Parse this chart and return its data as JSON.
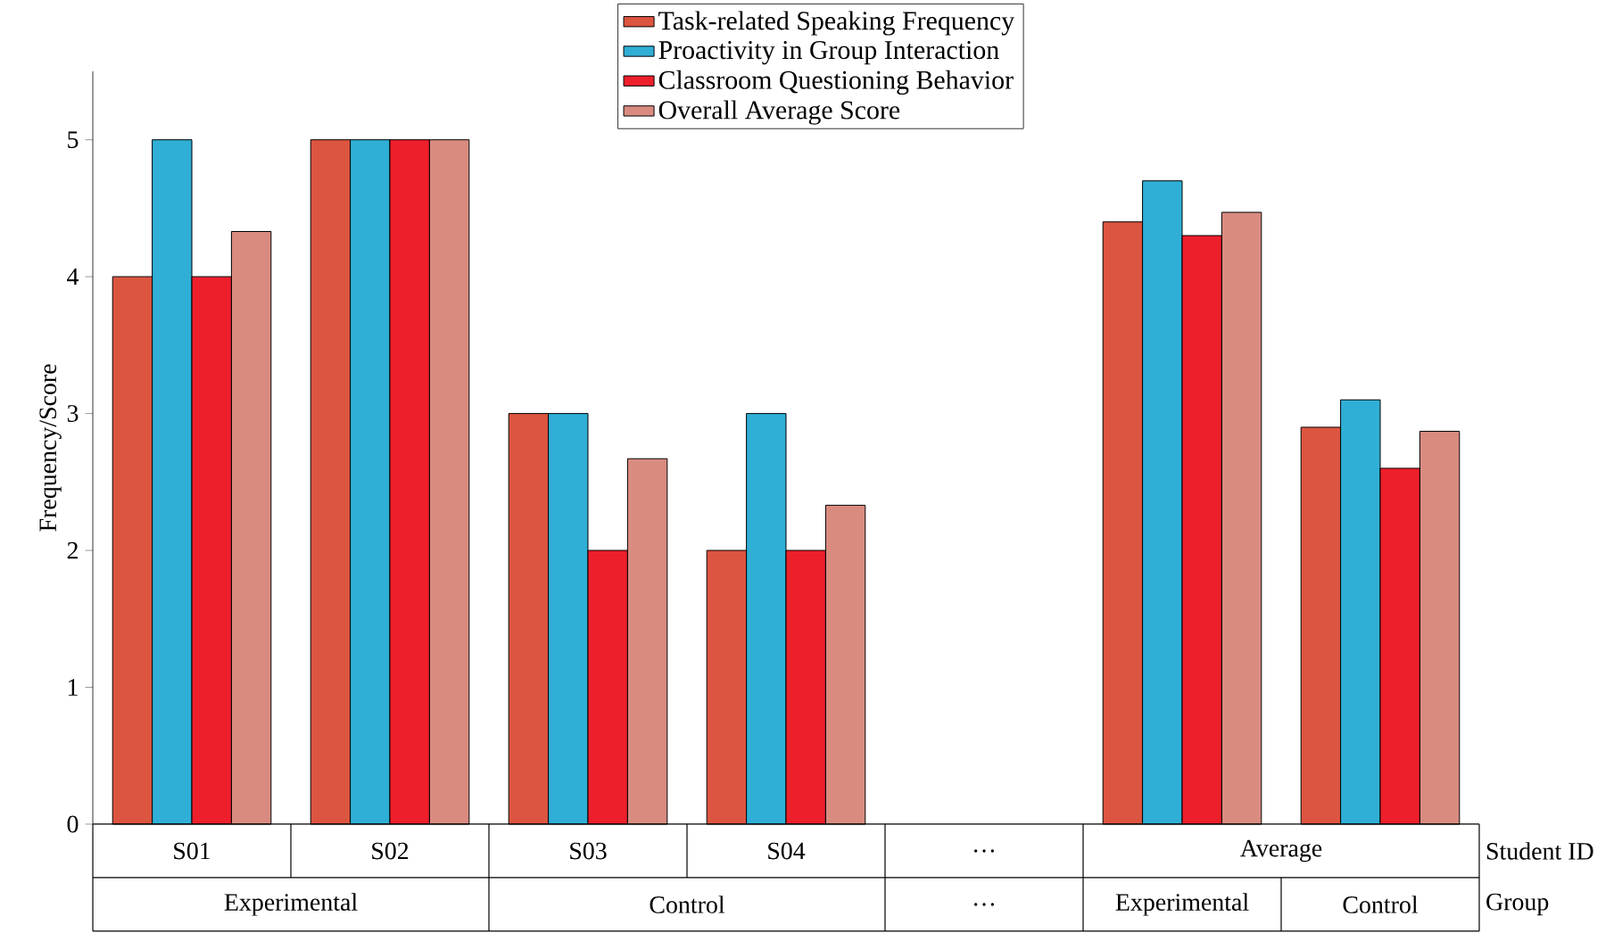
{
  "chart_data": {
    "type": "bar",
    "ylabel": "Frequency/Score",
    "categories": [
      "S01",
      "S02",
      "S03",
      "S04",
      "…",
      null,
      null
    ],
    "series": [
      {
        "name": "Task-related Speaking Frequency",
        "color": "#dc5540",
        "values": [
          4,
          5,
          3,
          2,
          null,
          4.4,
          2.9
        ]
      },
      {
        "name": "Proactivity in Group Interaction",
        "color": "#30afd6",
        "values": [
          5,
          5,
          3,
          3,
          null,
          4.7,
          3.1
        ]
      },
      {
        "name": "Classroom Questioning Behavior",
        "color": "#ed1f2b",
        "values": [
          4,
          5,
          2,
          2,
          null,
          4.3,
          2.6
        ]
      },
      {
        "name": "Overall Average Score",
        "color": "#d98b80",
        "values": [
          4.33,
          5,
          2.67,
          2.33,
          null,
          4.47,
          2.87
        ]
      }
    ],
    "ylim": [
      0,
      5.5
    ],
    "yticks": [
      0,
      1,
      2,
      3,
      4,
      5
    ],
    "legend": "top",
    "annotations": [
      "Average",
      "Experimental",
      "Control",
      "…",
      "Experimental",
      "Control",
      "Student ID",
      "Group"
    ]
  }
}
